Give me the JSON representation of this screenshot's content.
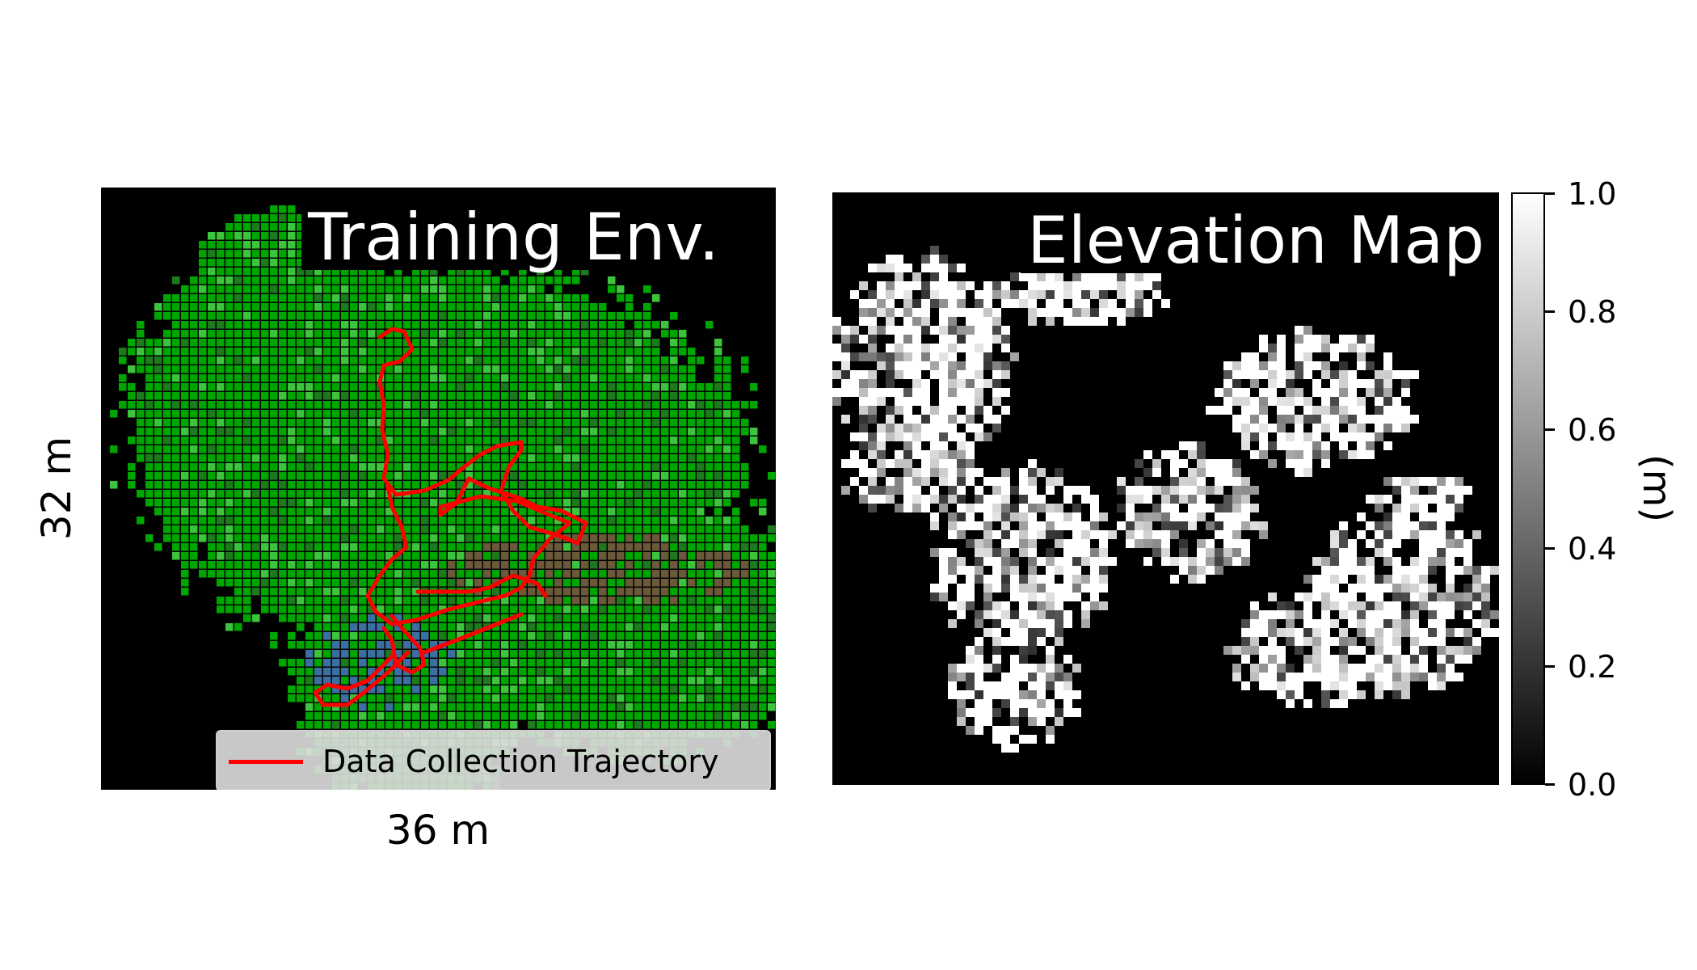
{
  "left_panel": {
    "title": "Training Env.",
    "xlabel": "36 m",
    "ylabel": "32 m",
    "legend": {
      "label": "Data Collection Trajectory",
      "color": "#ff0000"
    },
    "colors": {
      "vegetation": "#00a600",
      "dark_vegetation": "#1d7a1d",
      "light_vegetation": "#3dc43d",
      "water": "#3a6fa0",
      "soil": "#6b5a3a",
      "background": "#000000"
    }
  },
  "right_panel": {
    "title": "Elevation Map",
    "colorbar": {
      "label": "(m)",
      "ticks": [
        "0.0",
        "0.2",
        "0.4",
        "0.6",
        "0.8",
        "1.0"
      ],
      "range": [
        0.0,
        1.0
      ],
      "colormap": "gray"
    }
  }
}
